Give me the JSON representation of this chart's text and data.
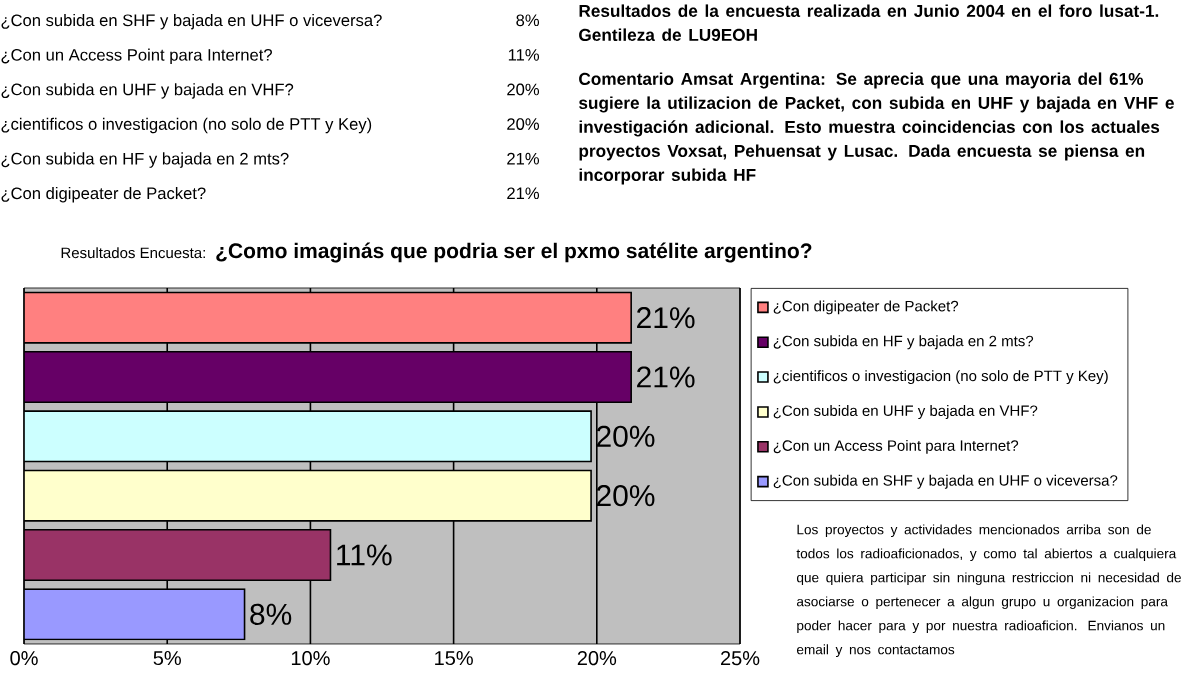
{
  "chart_data": {
    "type": "bar",
    "orientation": "horizontal",
    "title": "Resultados Encuesta:",
    "subtitle": "¿Como imaginás que podria ser el pxmo satélite argentino?",
    "categories": [
      null,
      null,
      null,
      null,
      null,
      null
    ],
    "series": [
      {
        "name": "¿Con digipeater de Packet?",
        "color": "#ff8080",
        "values": [
          21.2,
          null,
          null,
          null,
          null,
          null
        ],
        "value_labels": [
          "21%",
          null,
          null,
          null,
          null,
          null
        ]
      },
      {
        "name": "¿Con subida en HF y bajada en 2 mts?",
        "color": "#660066",
        "values": [
          null,
          21.2,
          null,
          null,
          null,
          null
        ],
        "value_labels": [
          null,
          "21%",
          null,
          null,
          null,
          null
        ]
      },
      {
        "name": "¿cientificos o investigacion (no solo de PTT y Key)",
        "color": "#ccffff",
        "values": [
          null,
          null,
          19.8,
          null,
          null,
          null
        ],
        "value_labels": [
          null,
          null,
          "20%",
          null,
          null,
          null
        ]
      },
      {
        "name": "¿Con subida en UHF y bajada en VHF?",
        "color": "#ffffcc",
        "values": [
          null,
          null,
          null,
          19.8,
          null,
          null
        ],
        "value_labels": [
          null,
          null,
          null,
          "20%",
          null,
          null
        ]
      },
      {
        "name": "¿Con un Access Point para Internet?",
        "color": "#993366",
        "values": [
          null,
          null,
          null,
          null,
          10.7,
          null
        ],
        "value_labels": [
          null,
          null,
          null,
          null,
          "11%",
          null
        ]
      },
      {
        "name": "¿Con subida en SHF y bajada en UHF o viceversa?",
        "color": "#9999ff",
        "values": [
          null,
          null,
          null,
          null,
          null,
          7.7
        ],
        "value_labels": [
          null,
          null,
          null,
          null,
          null,
          "8%"
        ]
      }
    ],
    "xlim": [
      0,
      25
    ],
    "xticks": [
      {
        "value": 0,
        "label": "0%"
      },
      {
        "value": 5,
        "label": "5%"
      },
      {
        "value": 10,
        "label": "10%"
      },
      {
        "value": 15,
        "label": "15%"
      },
      {
        "value": 20,
        "label": "20%"
      },
      {
        "value": 25,
        "label": "25%"
      }
    ],
    "grid": "x",
    "legend": "right",
    "tick_labels": "x",
    "annotations": [
      "Resultados de la encuesta realizada en Junio 2004 en el foro lusat-1. Gentileza de LU9EOH",
      "Comentario Amsat Argentina: Se aprecia que una mayoria del  61% sugiere la utilizacion de Packet, con subida en UHF y bajada en VHF e investigación adicional. Esto muestra coincidencias con los actuales proyectos Voxsat, Pehuensat y Lusac. Dada encuesta se piensa en incorporar subida HF",
      "Los proyectos y actividades mencionados arriba son de todos los radioaficionados, y como tal abiertos a cualquiera que quiera participar sin ninguna restriccion ni necesidad de asociarse o pertenecer a algun grupo u organizacion para poder hacer para y por nuestra radioaficion. Envianos un email y nos contactamos"
    ]
  }
}
